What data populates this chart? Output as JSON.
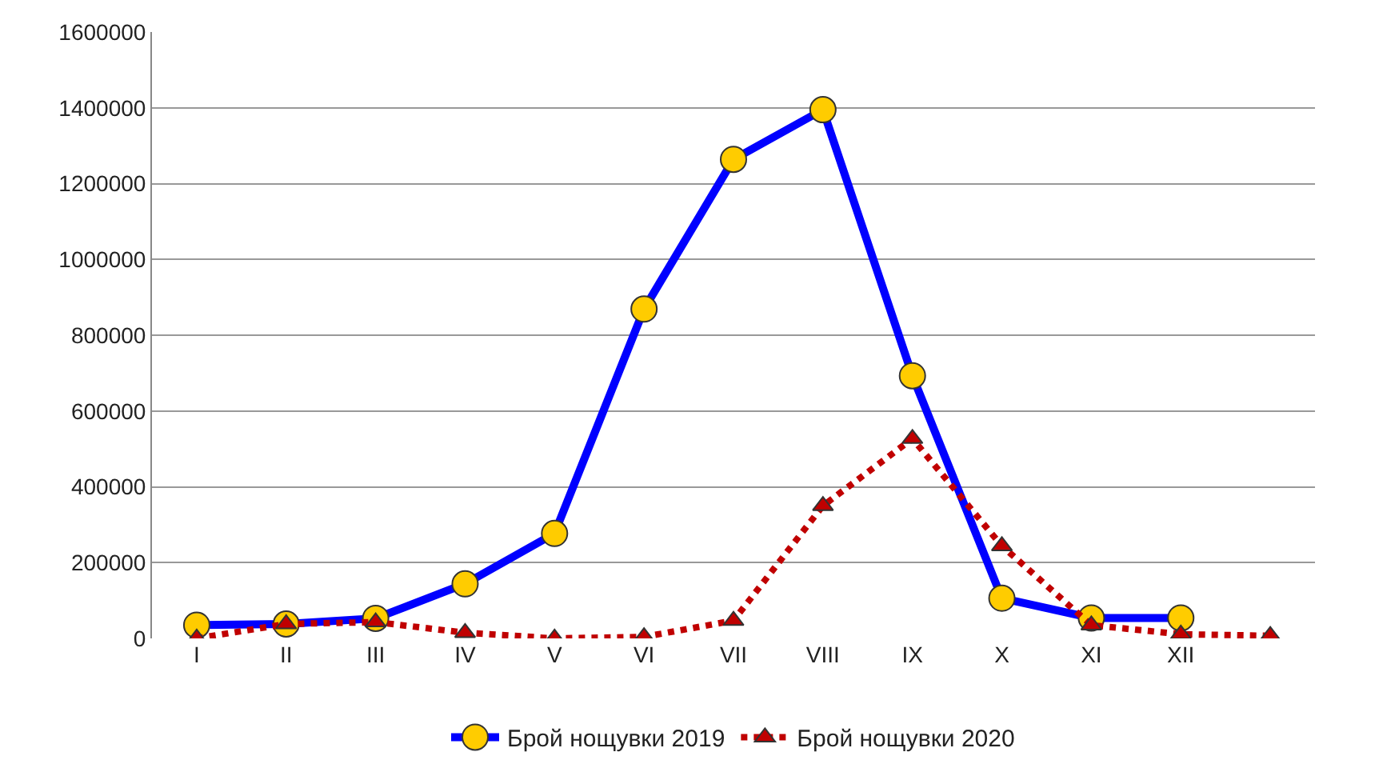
{
  "chart_data": {
    "type": "line",
    "categories": [
      "I",
      "II",
      "III",
      "IV",
      "V",
      "VI",
      "VII",
      "VIII",
      "IX",
      "X",
      "XI",
      "XII",
      null
    ],
    "ylim": [
      0,
      1600000
    ],
    "yticks": [
      0,
      200000,
      400000,
      600000,
      800000,
      1000000,
      1200000,
      1400000,
      1600000
    ],
    "grid": "y",
    "legend": "bottom",
    "series": [
      {
        "name": "Брой нощувки 2019",
        "color": "#0000ff",
        "marker": "circle",
        "line_style": "solid",
        "values": [
          35000,
          38000,
          53000,
          144000,
          277000,
          869000,
          1264000,
          1395000,
          693000,
          106000,
          54000,
          54000,
          null
        ]
      },
      {
        "name": "Брой нощувки 2020",
        "color": "#c00000",
        "marker": "triangle",
        "line_style": "dotted",
        "values": [
          0,
          38000,
          43000,
          15000,
          0,
          4000,
          47000,
          350000,
          527000,
          244000,
          35000,
          11000,
          7000
        ]
      }
    ]
  }
}
